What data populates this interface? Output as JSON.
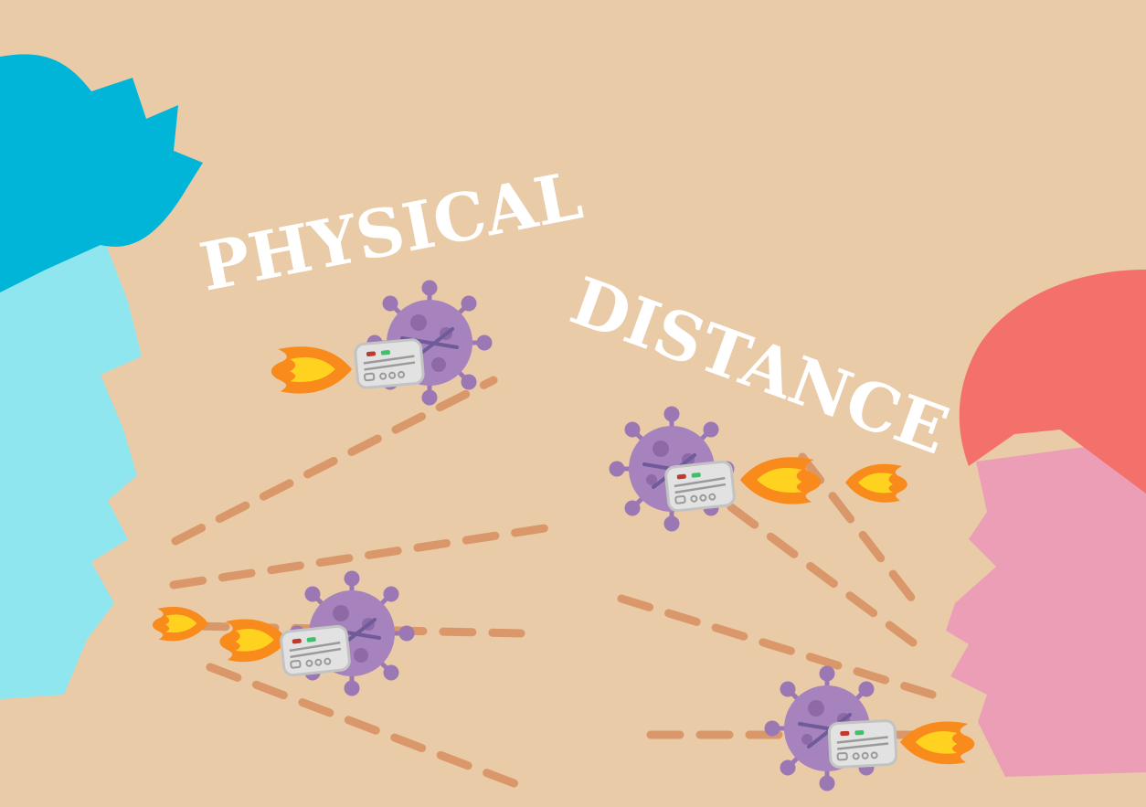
{
  "title": {
    "line1": "PHYSICAL",
    "line2": "DISTANCE"
  },
  "colors": {
    "background": "#e9cba8",
    "left_hair": "#00b5d8",
    "left_face": "#8fe6ee",
    "right_hair": "#f4706a",
    "right_face": "#ec9eb7",
    "virus": "#a683bd",
    "virus_spots": "#8d6aa6",
    "jetpack": "#e2e2e2",
    "flame_outer": "#f98a1c",
    "flame_inner": "#ffd21f",
    "trail": "#d9976a"
  },
  "icons": [
    "virus-icon",
    "jetpack-icon",
    "flame-icon"
  ]
}
